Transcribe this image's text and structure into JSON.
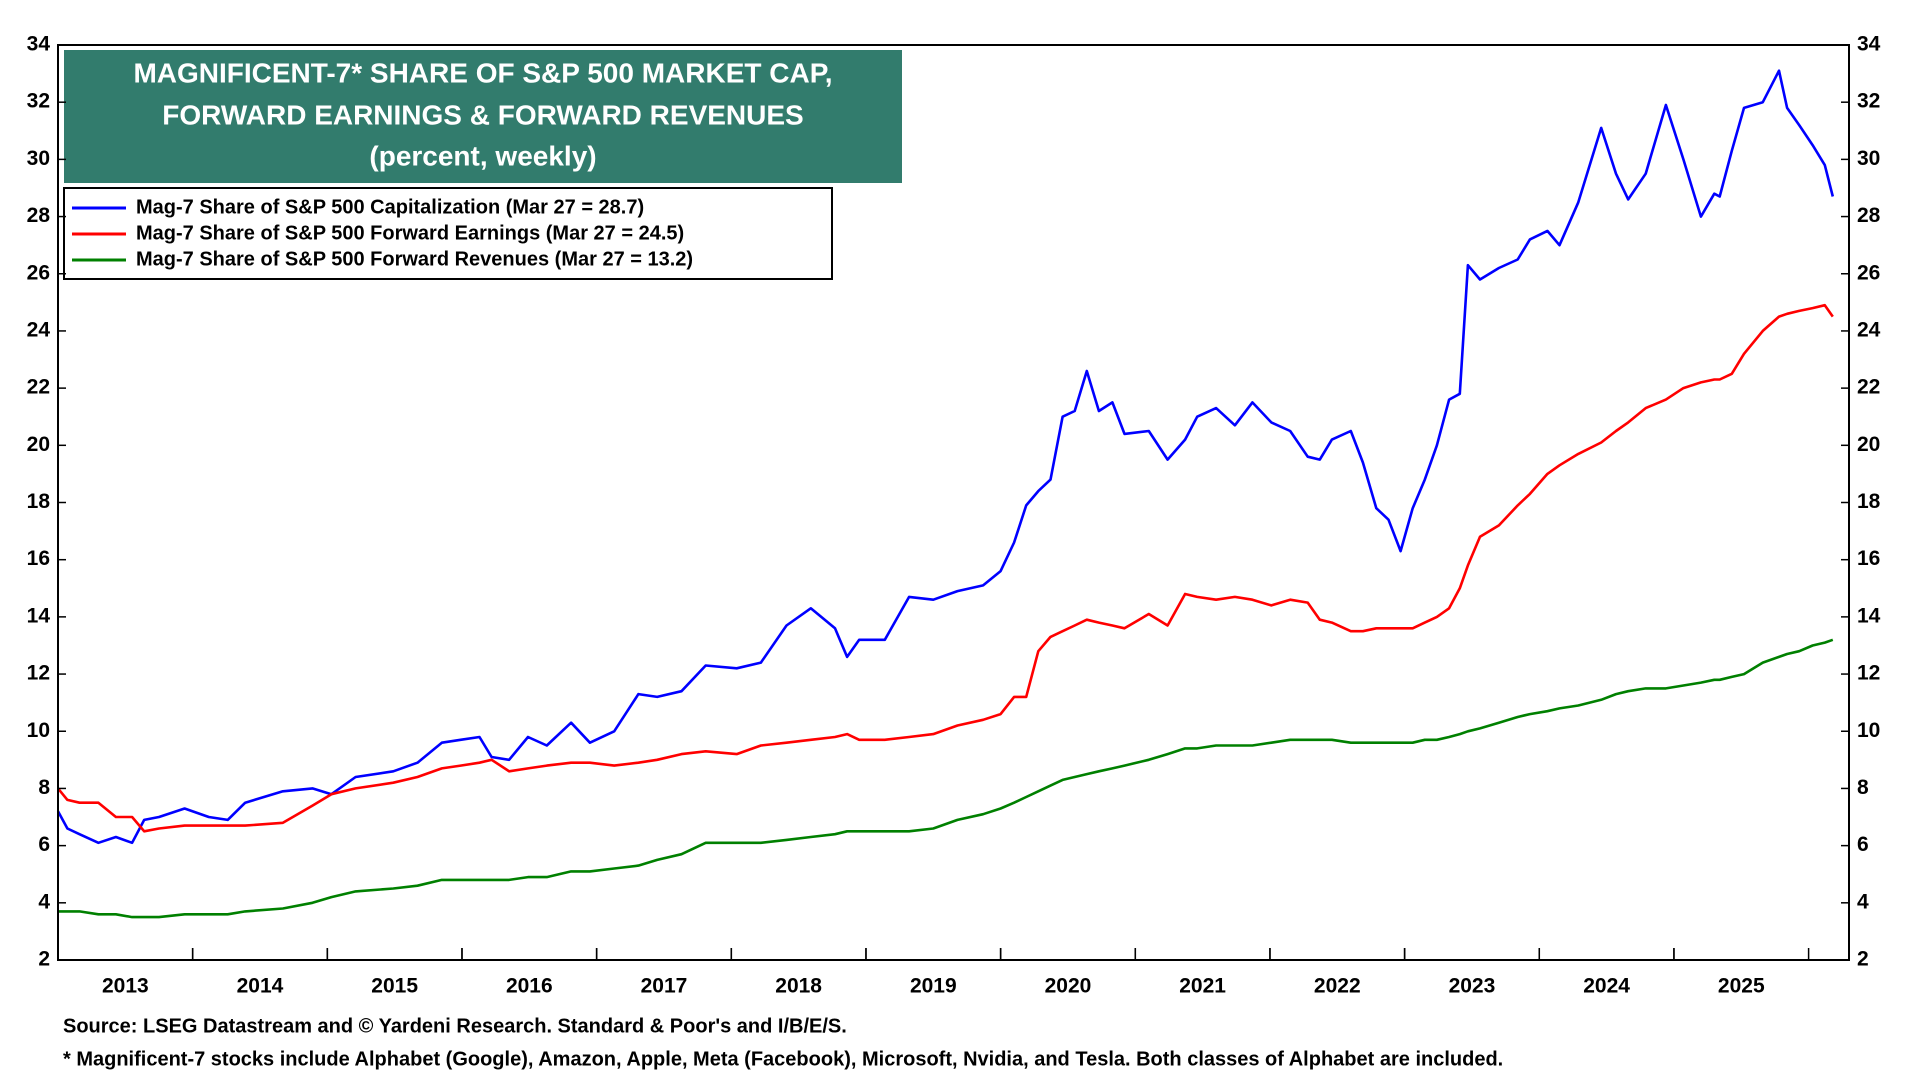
{
  "chart_data": {
    "type": "line",
    "title": [
      "MAGNIFICENT-7* SHARE OF S&P 500 MARKET CAP,",
      "FORWARD EARNINGS & FORWARD REVENUES"
    ],
    "subtitle": "(percent, weekly)",
    "notes": [
      "Source: LSEG Datastream and © Yardeni Research. Standard & Poor's and I/B/E/S.",
      "* Magnificent-7 stocks include Alphabet (Google), Amazon, Apple, Meta (Facebook), Microsoft, Nvidia, and Tesla. Both classes of Alphabet are included."
    ],
    "title_color": "#327c6d",
    "legend": "upper left",
    "x": [
      2013.0,
      2013.07,
      2013.16,
      2013.3,
      2013.43,
      2013.55,
      2013.64,
      2013.75,
      2013.94,
      2014.12,
      2014.26,
      2014.39,
      2014.67,
      2014.89,
      2015.03,
      2015.21,
      2015.49,
      2015.67,
      2015.85,
      2015.99,
      2016.13,
      2016.22,
      2016.35,
      2016.49,
      2016.63,
      2016.81,
      2016.95,
      2017.13,
      2017.31,
      2017.45,
      2017.63,
      2017.81,
      2018.04,
      2018.22,
      2018.41,
      2018.59,
      2018.77,
      2018.86,
      2018.95,
      2019.14,
      2019.32,
      2019.5,
      2019.68,
      2019.87,
      2020.0,
      2020.1,
      2020.19,
      2020.28,
      2020.37,
      2020.46,
      2020.55,
      2020.64,
      2020.73,
      2020.83,
      2020.92,
      2021.1,
      2021.24,
      2021.37,
      2021.46,
      2021.6,
      2021.74,
      2021.87,
      2022.01,
      2022.15,
      2022.28,
      2022.37,
      2022.46,
      2022.6,
      2022.69,
      2022.79,
      2022.88,
      2022.97,
      2023.06,
      2023.15,
      2023.24,
      2023.33,
      2023.41,
      2023.47,
      2023.56,
      2023.7,
      2023.84,
      2023.93,
      2024.06,
      2024.15,
      2024.29,
      2024.46,
      2024.57,
      2024.66,
      2024.79,
      2024.94,
      2025.07,
      2025.2,
      2025.3,
      2025.34,
      2025.43,
      2025.52,
      2025.66,
      2025.78,
      2025.84,
      2025.93,
      2026.03,
      2026.12,
      2026.18
    ],
    "series": [
      {
        "name": "Mag-7 Share of S&P 500 Capitalization (Mar 27 = 28.7)",
        "color": "#0000ff",
        "values": [
          7.2,
          6.6,
          6.4,
          6.1,
          6.3,
          6.1,
          6.9,
          7.0,
          7.3,
          7.0,
          6.9,
          7.5,
          7.9,
          8.0,
          7.8,
          8.4,
          8.6,
          8.9,
          9.6,
          9.7,
          9.8,
          9.1,
          9.0,
          9.8,
          9.5,
          10.3,
          9.6,
          10.0,
          11.3,
          11.2,
          11.4,
          12.3,
          12.2,
          12.4,
          13.7,
          14.3,
          13.6,
          12.6,
          13.2,
          13.2,
          14.7,
          14.6,
          14.9,
          15.1,
          15.6,
          16.6,
          17.9,
          18.4,
          18.8,
          21.0,
          21.2,
          22.6,
          21.2,
          21.5,
          20.4,
          20.5,
          19.5,
          20.2,
          21.0,
          21.3,
          20.7,
          21.5,
          20.8,
          20.5,
          19.6,
          19.5,
          20.2,
          20.5,
          19.4,
          17.8,
          17.4,
          16.3,
          17.8,
          18.8,
          20.0,
          21.6,
          21.8,
          26.3,
          25.8,
          26.2,
          26.5,
          27.2,
          27.5,
          27.0,
          28.5,
          31.1,
          29.5,
          28.6,
          29.5,
          31.9,
          30.0,
          28.0,
          28.8,
          28.7,
          30.3,
          31.8,
          32.0,
          33.1,
          31.8,
          31.2,
          30.5,
          29.8,
          28.7
        ]
      },
      {
        "name": "Mag-7 Share of S&P 500 Forward Earnings (Mar 27 = 24.5)",
        "color": "#ff0000",
        "values": [
          8.0,
          7.6,
          7.5,
          7.5,
          7.0,
          7.0,
          6.5,
          6.6,
          6.7,
          6.7,
          6.7,
          6.7,
          6.8,
          7.4,
          7.8,
          8.0,
          8.2,
          8.4,
          8.7,
          8.8,
          8.9,
          9.0,
          8.6,
          8.7,
          8.8,
          8.9,
          8.9,
          8.8,
          8.9,
          9.0,
          9.2,
          9.3,
          9.2,
          9.5,
          9.6,
          9.7,
          9.8,
          9.9,
          9.7,
          9.7,
          9.8,
          9.9,
          10.2,
          10.4,
          10.6,
          11.2,
          11.2,
          12.8,
          13.3,
          13.5,
          13.7,
          13.9,
          13.8,
          13.7,
          13.6,
          14.1,
          13.7,
          14.8,
          14.7,
          14.6,
          14.7,
          14.6,
          14.4,
          14.6,
          14.5,
          13.9,
          13.8,
          13.5,
          13.5,
          13.6,
          13.6,
          13.6,
          13.6,
          13.8,
          14.0,
          14.3,
          15.0,
          15.8,
          16.8,
          17.2,
          17.9,
          18.3,
          19.0,
          19.3,
          19.7,
          20.1,
          20.5,
          20.8,
          21.3,
          21.6,
          22.0,
          22.2,
          22.3,
          22.3,
          22.5,
          23.2,
          24.0,
          24.5,
          24.6,
          24.7,
          24.8,
          24.9,
          24.5
        ]
      },
      {
        "name": "Mag-7 Share of S&P 500 Forward Revenues (Mar 27 = 13.2)",
        "color": "#008000",
        "values": [
          3.7,
          3.7,
          3.7,
          3.6,
          3.6,
          3.5,
          3.5,
          3.5,
          3.6,
          3.6,
          3.6,
          3.7,
          3.8,
          4.0,
          4.2,
          4.4,
          4.5,
          4.6,
          4.8,
          4.8,
          4.8,
          4.8,
          4.8,
          4.9,
          4.9,
          5.1,
          5.1,
          5.2,
          5.3,
          5.5,
          5.7,
          6.1,
          6.1,
          6.1,
          6.2,
          6.3,
          6.4,
          6.5,
          6.5,
          6.5,
          6.5,
          6.6,
          6.9,
          7.1,
          7.3,
          7.5,
          7.7,
          7.9,
          8.1,
          8.3,
          8.4,
          8.5,
          8.6,
          8.7,
          8.8,
          9.0,
          9.2,
          9.4,
          9.4,
          9.5,
          9.5,
          9.5,
          9.6,
          9.7,
          9.7,
          9.7,
          9.7,
          9.6,
          9.6,
          9.6,
          9.6,
          9.6,
          9.6,
          9.7,
          9.7,
          9.8,
          9.9,
          10.0,
          10.1,
          10.3,
          10.5,
          10.6,
          10.7,
          10.8,
          10.9,
          11.1,
          11.3,
          11.4,
          11.5,
          11.5,
          11.6,
          11.7,
          11.8,
          11.8,
          11.9,
          12.0,
          12.4,
          12.6,
          12.7,
          12.8,
          13.0,
          13.1,
          13.2
        ]
      }
    ],
    "xlim": [
      2013.0,
      2026.3
    ],
    "xticks": [
      {
        "value": 2013.5,
        "label": "2013"
      },
      {
        "value": 2014.5,
        "label": "2014"
      },
      {
        "value": 2015.5,
        "label": "2015"
      },
      {
        "value": 2016.5,
        "label": "2016"
      },
      {
        "value": 2017.5,
        "label": "2017"
      },
      {
        "value": 2018.5,
        "label": "2018"
      },
      {
        "value": 2019.5,
        "label": "2019"
      },
      {
        "value": 2020.5,
        "label": "2020"
      },
      {
        "value": 2021.5,
        "label": "2021"
      },
      {
        "value": 2022.5,
        "label": "2022"
      },
      {
        "value": 2023.5,
        "label": "2023"
      },
      {
        "value": 2024.5,
        "label": "2024"
      },
      {
        "value": 2025.5,
        "label": "2025"
      }
    ],
    "ylim": [
      2,
      34
    ],
    "yticks": [
      2,
      4,
      6,
      8,
      10,
      12,
      14,
      16,
      18,
      20,
      22,
      24,
      26,
      28,
      30,
      32,
      34
    ],
    "grid": false
  }
}
